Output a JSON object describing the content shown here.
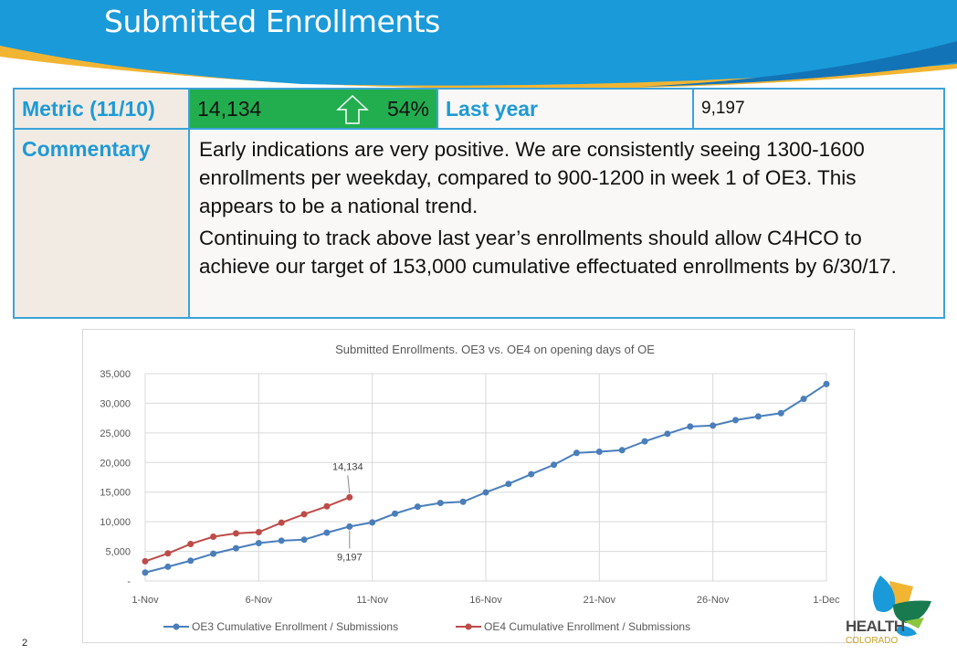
{
  "slide": {
    "title": "Submitted Enrollments",
    "page_number": "2"
  },
  "metric_table": {
    "metric_label": "Metric (11/10)",
    "metric_value": "14,134",
    "change_icon": "up-arrow-outline-icon",
    "change_pct": "54%",
    "last_year_label": "Last year",
    "last_year_value": "9,197",
    "commentary_label": "Commentary",
    "commentary_p1": "Early indications are very positive.  We are consistently seeing 1300-1600 enrollments per weekday, compared to 900-1200 in week 1 of OE3. This appears to be a national trend.",
    "commentary_p2": "Continuing to track above last year’s enrollments should allow C4HCO to achieve our target of 153,000 cumulative effectuated enrollments by 6/30/17."
  },
  "logo": {
    "text": "HEALTH",
    "sub": "COLORADO"
  },
  "colors": {
    "banner_blue": "#1a9ad9",
    "accent_yellow": "#f2b533",
    "green": "#22ae4f",
    "oe3": "#4a7ebb",
    "oe4": "#be4b48"
  },
  "chart_data": {
    "type": "line",
    "title": "Submitted Enrollments. OE3 vs. OE4 on opening days of OE",
    "x_tick_labels": [
      "1-Nov",
      "6-Nov",
      "11-Nov",
      "16-Nov",
      "21-Nov",
      "26-Nov",
      "1-Dec"
    ],
    "y_tick_labels": [
      "-",
      "5,000",
      "10,000",
      "15,000",
      "20,000",
      "25,000",
      "30,000",
      "35,000"
    ],
    "ylim": [
      0,
      35000
    ],
    "xlim": [
      "1-Nov",
      "1-Dec"
    ],
    "grid": true,
    "legend_position": "bottom",
    "series": [
      {
        "name": "OE3 Cumulative Enrollment / Submissions",
        "color": "#4a7ebb",
        "x": [
          "1-Nov",
          "2-Nov",
          "3-Nov",
          "4-Nov",
          "5-Nov",
          "6-Nov",
          "7-Nov",
          "8-Nov",
          "9-Nov",
          "10-Nov",
          "11-Nov",
          "12-Nov",
          "13-Nov",
          "14-Nov",
          "15-Nov",
          "16-Nov",
          "17-Nov",
          "18-Nov",
          "19-Nov",
          "20-Nov",
          "21-Nov",
          "22-Nov",
          "23-Nov",
          "24-Nov",
          "25-Nov",
          "26-Nov",
          "27-Nov",
          "28-Nov",
          "29-Nov",
          "30-Nov",
          "1-Dec"
        ],
        "values": [
          1430,
          2410,
          3430,
          4610,
          5530,
          6400,
          6810,
          6970,
          8150,
          9197,
          9890,
          11370,
          12550,
          13170,
          13370,
          14960,
          16390,
          18030,
          19620,
          21620,
          21820,
          22080,
          23570,
          24850,
          26080,
          26230,
          27150,
          27770,
          28330,
          30740,
          33250
        ]
      },
      {
        "name": "OE4 Cumulative Enrollment / Submissions",
        "color": "#be4b48",
        "x": [
          "1-Nov",
          "2-Nov",
          "3-Nov",
          "4-Nov",
          "5-Nov",
          "6-Nov",
          "7-Nov",
          "8-Nov",
          "9-Nov",
          "10-Nov"
        ],
        "values": [
          3330,
          4660,
          6250,
          7480,
          8040,
          8250,
          9840,
          11270,
          12600,
          14134
        ]
      }
    ],
    "annotations": [
      {
        "text": "14,134",
        "series": "OE4",
        "x": "10-Nov"
      },
      {
        "text": "9,197",
        "series": "OE3",
        "x": "10-Nov"
      }
    ]
  }
}
